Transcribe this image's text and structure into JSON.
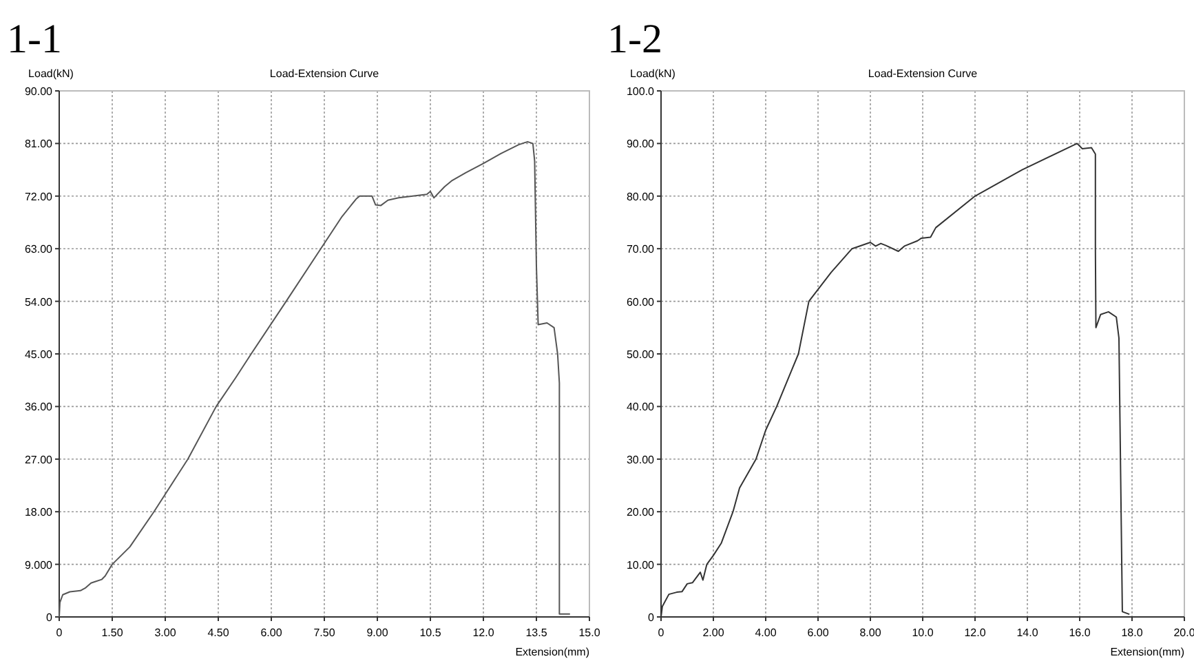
{
  "chart_data": [
    {
      "type": "line",
      "title": "1-1",
      "subtitle": "Load-Extension Curve",
      "xlabel": "Extension(mm)",
      "ylabel": "Load(kN)",
      "xlim": [
        0,
        15
      ],
      "ylim": [
        0,
        90
      ],
      "xticks": [
        0,
        {
          "value": 1.5,
          "label": "1.50"
        },
        {
          "value": 3,
          "label": "3.00"
        },
        {
          "value": 4.5,
          "label": "4.50"
        },
        {
          "value": 6,
          "label": "6.00"
        },
        {
          "value": 7.5,
          "label": "7.50"
        },
        {
          "value": 9,
          "label": "9.00"
        },
        10.5,
        {
          "value": 12,
          "label": "12.0"
        },
        13.5,
        {
          "value": 15,
          "label": "15.0"
        }
      ],
      "yticks": [
        0,
        {
          "value": 9,
          "label": "9.000"
        },
        {
          "value": 18,
          "label": "18.00"
        },
        {
          "value": 27,
          "label": "27.00"
        },
        {
          "value": 36,
          "label": "36.00"
        },
        {
          "value": 45,
          "label": "45.00"
        },
        {
          "value": 54,
          "label": "54.00"
        },
        {
          "value": 63,
          "label": "63.00"
        },
        {
          "value": 72,
          "label": "72.00"
        },
        {
          "value": 81,
          "label": "81.00"
        },
        {
          "value": 90,
          "label": "90.00"
        }
      ],
      "grid": true,
      "series": [
        {
          "color": "#555555",
          "x": [
            0,
            0.02,
            0.1,
            0.3,
            0.6,
            0.75,
            0.9,
            1.0,
            1.2,
            1.3,
            1.5,
            2.0,
            2.68,
            3.0,
            3.64,
            4.44,
            5.0,
            5.43,
            6.42,
            7.4,
            8.0,
            8.4,
            8.5,
            8.85,
            8.95,
            9.1,
            9.3,
            9.6,
            10.0,
            10.4,
            10.5,
            10.6,
            10.9,
            11.1,
            11.5,
            12.0,
            12.5,
            13.0,
            13.25,
            13.4,
            13.45,
            13.5,
            13.55,
            13.8,
            14.0,
            14.1,
            14.15,
            14.15,
            14.45
          ],
          "values": [
            0,
            2.5,
            3.8,
            4.3,
            4.5,
            5,
            5.8,
            6.0,
            6.4,
            7,
            9,
            12,
            18,
            21,
            27,
            36,
            41,
            45,
            54,
            63,
            68.5,
            71.5,
            72,
            72,
            70.5,
            70.4,
            71.3,
            71.7,
            72,
            72.3,
            72.8,
            71.7,
            73.6,
            74.6,
            76,
            77.6,
            79.3,
            80.8,
            81.3,
            81,
            78,
            60,
            50,
            50.3,
            49.5,
            45,
            40,
            0.5,
            0.5
          ]
        }
      ]
    },
    {
      "type": "line",
      "title": "1-2",
      "subtitle": "Load-Extension Curve",
      "xlabel": "Extension(mm)",
      "ylabel": "Load(kN)",
      "xlim": [
        0,
        20
      ],
      "ylim": [
        0,
        100
      ],
      "xticks": [
        0,
        {
          "value": 2,
          "label": "2.00"
        },
        {
          "value": 4,
          "label": "4.00"
        },
        {
          "value": 6,
          "label": "6.00"
        },
        {
          "value": 8,
          "label": "8.00"
        },
        {
          "value": 10,
          "label": "10.0"
        },
        {
          "value": 12,
          "label": "12.0"
        },
        {
          "value": 14,
          "label": "14.0"
        },
        {
          "value": 16,
          "label": "16.0"
        },
        {
          "value": 18,
          "label": "18.0"
        },
        {
          "value": 20,
          "label": "20.0"
        }
      ],
      "yticks": [
        0,
        {
          "value": 10,
          "label": "10.00"
        },
        {
          "value": 20,
          "label": "20.00"
        },
        {
          "value": 30,
          "label": "30.00"
        },
        {
          "value": 40,
          "label": "40.00"
        },
        {
          "value": 50,
          "label": "50.00"
        },
        {
          "value": 60,
          "label": "60.00"
        },
        {
          "value": 70,
          "label": "70.00"
        },
        {
          "value": 80,
          "label": "80.00"
        },
        {
          "value": 90,
          "label": "90.00"
        },
        {
          "value": 100,
          "label": "100.0"
        }
      ],
      "grid": true,
      "series": [
        {
          "color": "#333333",
          "x": [
            0,
            0.05,
            0.3,
            0.6,
            0.8,
            1.0,
            1.2,
            1.5,
            1.6,
            1.75,
            2.0,
            2.3,
            2.75,
            3.0,
            3.63,
            4.0,
            4.42,
            5.0,
            5.25,
            5.65,
            6.5,
            7.3,
            8.0,
            8.2,
            8.4,
            8.6,
            9.07,
            9.3,
            9.8,
            9.95,
            10.3,
            10.5,
            12.0,
            13.8,
            15.9,
            16.1,
            16.45,
            16.6,
            16.6,
            16.62,
            16.8,
            17.1,
            17.4,
            17.5,
            17.52,
            17.63,
            17.9
          ],
          "values": [
            0,
            2,
            4.3,
            4.7,
            4.8,
            6.3,
            6.5,
            8.5,
            7,
            10,
            11.7,
            14,
            20,
            24.5,
            30,
            35.5,
            40,
            47,
            50,
            60,
            65.5,
            70,
            71.2,
            70.5,
            71,
            70.6,
            69.5,
            70.5,
            71.5,
            72,
            72.2,
            74,
            80,
            85,
            90,
            89,
            89.2,
            88,
            70,
            55,
            57.5,
            58,
            57,
            53,
            45,
            1,
            0.5
          ]
        }
      ]
    }
  ]
}
